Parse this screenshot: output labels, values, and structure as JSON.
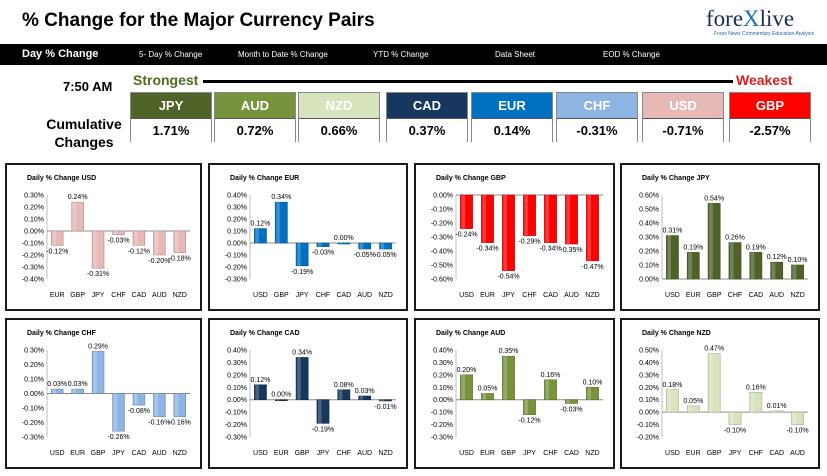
{
  "header": {
    "title": "% Change for the Major Currency Pairs",
    "logo": {
      "text_part1": "fore",
      "text_x": "X",
      "text_part2": "live",
      "tagline": "Forex News Commentary Education Analysis"
    }
  },
  "nav": {
    "tabs": [
      {
        "label": "Day % Change",
        "active": true
      },
      {
        "label": "5- Day % Change",
        "active": false
      },
      {
        "label": "Month to Date % Change",
        "active": false
      },
      {
        "label": "YTD % Change",
        "active": false
      },
      {
        "label": "Data Sheet",
        "active": false
      },
      {
        "label": "EOD % Change",
        "active": false
      }
    ]
  },
  "summary": {
    "time": "7:50 AM",
    "strongest_label": "Strongest",
    "weakest_label": "Weakest",
    "cumulative_label_line1": "Cumulative",
    "cumulative_label_line2": "Changes",
    "tiles": [
      {
        "currency": "JPY",
        "value": "1.71%",
        "color": "#4f6228"
      },
      {
        "currency": "AUD",
        "value": "0.72%",
        "color": "#77933c"
      },
      {
        "currency": "NZD",
        "value": "0.66%",
        "color": "#d7e4bd"
      },
      {
        "currency": "CAD",
        "value": "0.37%",
        "color": "#17375e"
      },
      {
        "currency": "EUR",
        "value": "0.14%",
        "color": "#0070c0"
      },
      {
        "currency": "CHF",
        "value": "-0.31%",
        "color": "#8eb4e3"
      },
      {
        "currency": "USD",
        "value": "-0.71%",
        "color": "#e6b9b8"
      },
      {
        "currency": "GBP",
        "value": "-2.57%",
        "color": "#ff0000"
      }
    ]
  },
  "chart_data": [
    {
      "type": "bar",
      "title": "Daily % Change USD",
      "categories": [
        "EUR",
        "GBP",
        "JPY",
        "CHF",
        "CAD",
        "AUD",
        "NZD"
      ],
      "values": [
        -0.12,
        0.24,
        -0.31,
        -0.03,
        -0.12,
        -0.2,
        -0.18
      ],
      "labels": [
        "-0.12%",
        "0.24%",
        "-0.31%",
        "-0.03%",
        "-0.12%",
        "-0.20%",
        "-0.18%"
      ],
      "ylim": [
        -0.4,
        0.3
      ],
      "ticks": [
        0.3,
        0.2,
        0.1,
        0.0,
        -0.1,
        -0.2,
        -0.3,
        -0.4
      ],
      "tick_labels": [
        "0.30%",
        "0.20%",
        "0.10%",
        "0.00%",
        "-0.10%",
        "-0.20%",
        "-0.30%",
        "-0.40%"
      ],
      "color": "#e6b9b8"
    },
    {
      "type": "bar",
      "title": "Daily % Change EUR",
      "categories": [
        "USD",
        "GBP",
        "JPY",
        "CHF",
        "CAD",
        "AUD",
        "NZD"
      ],
      "values": [
        0.12,
        0.34,
        -0.19,
        -0.03,
        0.0,
        -0.05,
        -0.05
      ],
      "labels": [
        "0.12%",
        "0.34%",
        "-0.19%",
        "-0.03%",
        "0.00%",
        "-0.05%",
        "-0.05%"
      ],
      "ylim": [
        -0.3,
        0.4
      ],
      "ticks": [
        0.4,
        0.3,
        0.2,
        0.1,
        0.0,
        -0.1,
        -0.2,
        -0.3
      ],
      "tick_labels": [
        "0.40%",
        "0.30%",
        "0.20%",
        "0.10%",
        "0.00%",
        "-0.10%",
        "-0.20%",
        "-0.30%"
      ],
      "color": "#0070c0"
    },
    {
      "type": "bar",
      "title": "Daily % Change GBP",
      "categories": [
        "USD",
        "EUR",
        "JPY",
        "CHF",
        "CAD",
        "AUD",
        "NZD"
      ],
      "values": [
        -0.24,
        -0.34,
        -0.54,
        -0.29,
        -0.34,
        -0.35,
        -0.47
      ],
      "labels": [
        "-0.24%",
        "-0.34%",
        "-0.54%",
        "-0.29%",
        "-0.34%",
        "-0.35%",
        "-0.47%"
      ],
      "ylim": [
        -0.6,
        0.0
      ],
      "ticks": [
        0.0,
        -0.1,
        -0.2,
        -0.3,
        -0.4,
        -0.5,
        -0.6
      ],
      "tick_labels": [
        "0.00%",
        "-0.10%",
        "-0.20%",
        "-0.30%",
        "-0.40%",
        "-0.50%",
        "-0.60%"
      ],
      "color": "#ff0000"
    },
    {
      "type": "bar",
      "title": "Daily % Change JPY",
      "categories": [
        "USD",
        "EUR",
        "GBP",
        "CHF",
        "CAD",
        "AUD",
        "NZD"
      ],
      "values": [
        0.31,
        0.19,
        0.54,
        0.26,
        0.19,
        0.12,
        0.1
      ],
      "labels": [
        "0.31%",
        "0.19%",
        "0.54%",
        "0.26%",
        "0.19%",
        "0.12%",
        "0.10%"
      ],
      "ylim": [
        0.0,
        0.6
      ],
      "ticks": [
        0.6,
        0.5,
        0.4,
        0.3,
        0.2,
        0.1,
        0.0
      ],
      "tick_labels": [
        "0.60%",
        "0.50%",
        "0.40%",
        "0.30%",
        "0.20%",
        "0.10%",
        "0.00%"
      ],
      "color": "#4f6228"
    },
    {
      "type": "bar",
      "title": "Daily % Change CHF",
      "categories": [
        "USD",
        "EUR",
        "GBP",
        "JPY",
        "CAD",
        "AUD",
        "NZD"
      ],
      "values": [
        0.03,
        0.03,
        0.29,
        -0.26,
        -0.08,
        -0.16,
        -0.16
      ],
      "labels": [
        "0.03%",
        "0.03%",
        "0.29%",
        "-0.26%",
        "-0.08%",
        "-0.16%",
        "-0.16%"
      ],
      "ylim": [
        -0.3,
        0.3
      ],
      "ticks": [
        0.3,
        0.2,
        0.1,
        0.0,
        -0.1,
        -0.2,
        -0.3
      ],
      "tick_labels": [
        "0.30%",
        "0.20%",
        "0.10%",
        "0.00%",
        "-0.10%",
        "-0.20%",
        "-0.30%"
      ],
      "color": "#8eb4e3"
    },
    {
      "type": "bar",
      "title": "Daily % Change CAD",
      "categories": [
        "USD",
        "EUR",
        "GBP",
        "JPY",
        "CHF",
        "AUD",
        "NZD"
      ],
      "values": [
        0.12,
        0.0,
        0.34,
        -0.19,
        0.08,
        0.03,
        -0.01
      ],
      "labels": [
        "0.12%",
        "0.00%",
        "0.34%",
        "-0.19%",
        "0.08%",
        "0.03%",
        "-0.01%"
      ],
      "ylim": [
        -0.3,
        0.4
      ],
      "ticks": [
        0.4,
        0.3,
        0.2,
        0.1,
        0.0,
        -0.1,
        -0.2,
        -0.3
      ],
      "tick_labels": [
        "0.40%",
        "0.30%",
        "0.20%",
        "0.10%",
        "0.00%",
        "-0.10%",
        "-0.20%",
        "-0.30%"
      ],
      "color": "#17375e"
    },
    {
      "type": "bar",
      "title": "Daily % Change AUD",
      "categories": [
        "USD",
        "EUR",
        "GBP",
        "JPY",
        "CHF",
        "CAD",
        "NZD"
      ],
      "values": [
        0.2,
        0.05,
        0.35,
        -0.12,
        0.16,
        -0.03,
        0.1
      ],
      "labels": [
        "0.20%",
        "0.05%",
        "0.35%",
        "-0.12%",
        "0.16%",
        "-0.03%",
        "0.10%"
      ],
      "ylim": [
        -0.3,
        0.4
      ],
      "ticks": [
        0.4,
        0.3,
        0.2,
        0.1,
        0.0,
        -0.1,
        -0.2,
        -0.3
      ],
      "tick_labels": [
        "0.40%",
        "0.30%",
        "0.20%",
        "0.10%",
        "0.00%",
        "-0.10%",
        "-0.20%",
        "-0.30%"
      ],
      "color": "#77933c"
    },
    {
      "type": "bar",
      "title": "Daily % Change NZD",
      "categories": [
        "USD",
        "EUR",
        "GBP",
        "JPY",
        "CHF",
        "CAD",
        "AUD"
      ],
      "values": [
        0.18,
        0.05,
        0.47,
        -0.1,
        0.16,
        0.01,
        -0.1
      ],
      "labels": [
        "0.18%",
        "0.05%",
        "0.47%",
        "-0.10%",
        "0.16%",
        "0.01%",
        "-0.10%"
      ],
      "ylim": [
        -0.2,
        0.5
      ],
      "ticks": [
        0.5,
        0.4,
        0.3,
        0.2,
        0.1,
        0.0,
        -0.1,
        -0.2
      ],
      "tick_labels": [
        "0.50%",
        "0.40%",
        "0.30%",
        "0.20%",
        "0.10%",
        "0.00%",
        "-0.10%",
        "-0.20%"
      ],
      "color": "#d7e4bd"
    }
  ]
}
